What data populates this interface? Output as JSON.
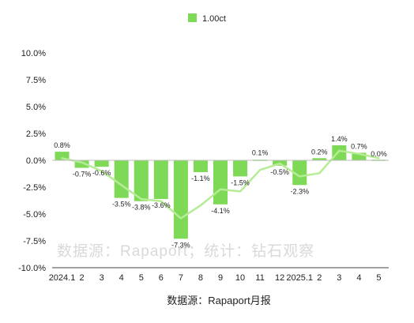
{
  "chart_data": {
    "type": "bar",
    "categories": [
      "2024.1",
      "2",
      "3",
      "4",
      "5",
      "6",
      "7",
      "8",
      "9",
      "10",
      "11",
      "12",
      "2025.1",
      "2",
      "3",
      "4",
      "5"
    ],
    "series": [
      {
        "name": "1.00ct",
        "values": [
          0.8,
          -0.7,
          -0.6,
          -3.5,
          -3.8,
          -3.6,
          -7.3,
          -1.1,
          -4.1,
          -1.5,
          0.1,
          -0.5,
          -2.3,
          0.2,
          1.4,
          0.7,
          0.0
        ],
        "labels": [
          "0.8%",
          "-0.7%",
          "-0.6%",
          "-3.5%",
          "-3.8%",
          "-3.6%",
          "-7.3%",
          "-1.1%",
          "-4.1%",
          "-1.5%",
          "0.1%",
          "-0.5%",
          "-2.3%",
          "0.2%",
          "1.4%",
          "0.7%",
          "0.0%"
        ],
        "color": "#7ed957"
      }
    ],
    "trend_line": {
      "values": [
        0.2,
        -0.2,
        -1.0,
        -2.3,
        -3.6,
        -3.8,
        -5.4,
        -4.2,
        -2.7,
        -2.9,
        -0.9,
        -0.3,
        -1.5,
        -1.2,
        0.9,
        0.6,
        0.2
      ],
      "color": "#b6ec95"
    },
    "ylim": [
      -10.0,
      10.0
    ],
    "yticks": [
      10.0,
      7.5,
      5.0,
      2.5,
      0.0,
      -2.5,
      -5.0,
      -7.5,
      -10.0
    ],
    "ytick_labels": [
      "10.0%",
      "7.5%",
      "5.0%",
      "2.5%",
      "0.0%",
      "-2.5%",
      "-5.0%",
      "-7.5%",
      "-10.0%"
    ],
    "legend_position": "top-center",
    "grid": false,
    "source_note": "数据源：Rapaport月报",
    "watermark": "数据源：Rapaport；统计：钻石观察"
  }
}
